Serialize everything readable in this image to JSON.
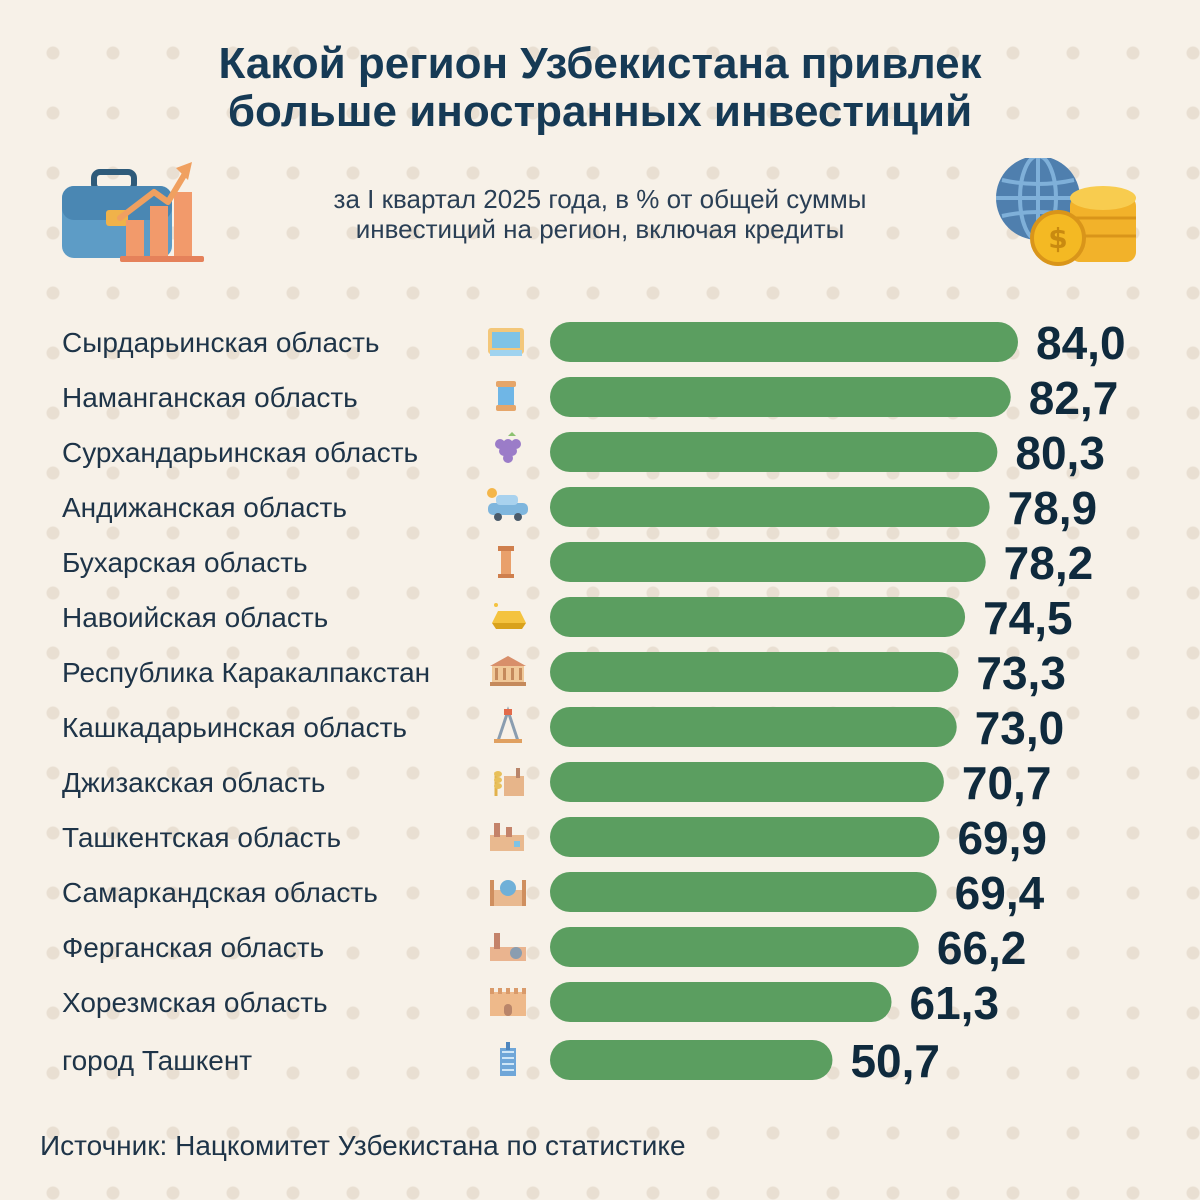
{
  "header": {
    "title_line1": "Какой регион Узбекистана привлек",
    "title_line2": "больше иностранных инвестиций",
    "subtitle_line1": "за I квартал 2025 года, в % от общей суммы",
    "subtitle_line2": "инвестиций на регион, включая кредиты"
  },
  "footer": {
    "source": "Источник: Нацкомитет Узбекистана по статистике"
  },
  "colors": {
    "bar": "#5b9e60",
    "value_text": "#0f2a3d",
    "label_text": "#1e3448",
    "title_text": "#163a55"
  },
  "chart_data": {
    "type": "bar",
    "orientation": "horizontal",
    "categories": [
      "Сырдарьинская область",
      "Наманганская область",
      "Сурхандарьинская область",
      "Андижанская область",
      "Бухарская область",
      "Навоийская область",
      "Республика Каракалпакстан",
      "Кашкадарьинская область",
      "Джизакская область",
      "Ташкентская область",
      "Самаркандская область",
      "Ферганская область",
      "Хорезмская область",
      "город Ташкент"
    ],
    "values": [
      84.0,
      82.7,
      80.3,
      78.9,
      78.2,
      74.5,
      73.3,
      73.0,
      70.7,
      69.9,
      69.4,
      66.2,
      61.3,
      50.7
    ],
    "value_labels": [
      "84,0",
      "82,7",
      "80,3",
      "78,9",
      "78,2",
      "74,5",
      "73,3",
      "73,0",
      "70,7",
      "69,9",
      "69,4",
      "66,2",
      "61,3",
      "50,7"
    ],
    "row_icons": [
      "dam-icon",
      "thread-spool-icon",
      "grapes-icon",
      "car-icon",
      "minaret-icon",
      "gold-bar-icon",
      "museum-icon",
      "oil-rig-icon",
      "wheat-factory-icon",
      "factory-icon",
      "mosque-icon",
      "plant-icon",
      "fortress-icon",
      "skyscraper-icon"
    ],
    "xlim": [
      0,
      84.0
    ],
    "grid": false,
    "legend": "none"
  }
}
